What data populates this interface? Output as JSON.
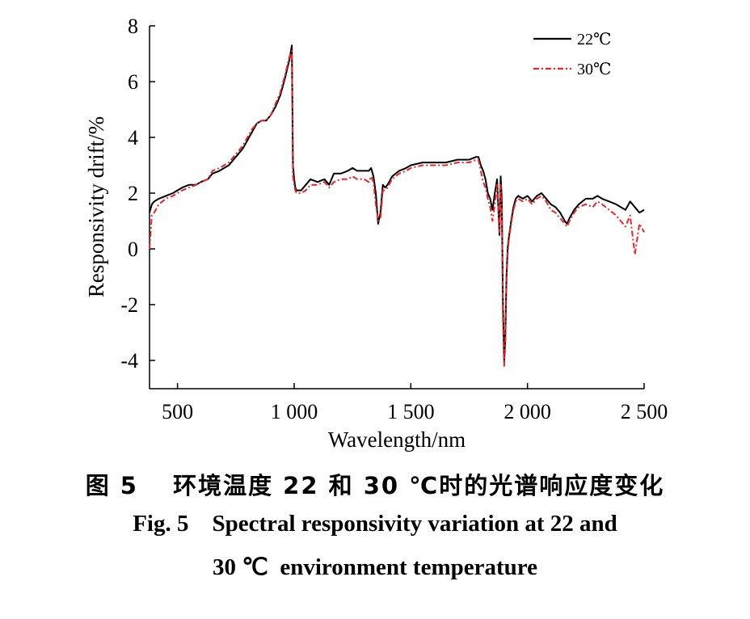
{
  "caption": {
    "cn": "图 5　 环境温度 22 和 30 ℃时的光谱响应度变化",
    "en_line1": "Fig. 5    Spectral responsivity variation at 22 and",
    "en_line2": "30 ℃  environment temperature"
  },
  "chart_data": {
    "type": "line",
    "title": "",
    "xlabel": "Wavelength/nm",
    "ylabel": "Responsivity drift/%",
    "xlim": [
      380,
      2500
    ],
    "ylim": [
      -5,
      8
    ],
    "xticks": [
      500,
      1000,
      1500,
      2000,
      2500
    ],
    "xtick_labels": [
      "500",
      "1 000",
      "1 500",
      "2 000",
      "2 500"
    ],
    "yticks": [
      8,
      6,
      4,
      2,
      0,
      -2,
      -4
    ],
    "ytick_labels": [
      "8",
      "6",
      "4",
      "2",
      "0",
      "-2",
      "-4"
    ],
    "grid": false,
    "legend_position": "top-right",
    "series": [
      {
        "name": "22℃",
        "color": "#000000",
        "dash": "solid",
        "x": [
          380,
          390,
          400,
          420,
          450,
          480,
          500,
          520,
          550,
          580,
          600,
          630,
          650,
          680,
          700,
          720,
          750,
          780,
          800,
          820,
          840,
          860,
          880,
          900,
          920,
          940,
          960,
          980,
          990,
          995,
          1000,
          1005,
          1010,
          1030,
          1050,
          1070,
          1100,
          1130,
          1150,
          1170,
          1200,
          1230,
          1250,
          1270,
          1300,
          1320,
          1330,
          1340,
          1350,
          1360,
          1370,
          1380,
          1390,
          1400,
          1420,
          1450,
          1480,
          1500,
          1550,
          1600,
          1650,
          1700,
          1750,
          1780,
          1790,
          1800,
          1810,
          1820,
          1830,
          1840,
          1850,
          1860,
          1870,
          1880,
          1885,
          1890,
          1895,
          1900,
          1905,
          1910,
          1915,
          1920,
          1930,
          1940,
          1950,
          1960,
          1980,
          2000,
          2020,
          2040,
          2060,
          2080,
          2100,
          2120,
          2140,
          2160,
          2170,
          2180,
          2200,
          2220,
          2250,
          2280,
          2300,
          2320,
          2350,
          2380,
          2400,
          2420,
          2440,
          2460,
          2480,
          2500
        ],
        "y": [
          1.3,
          1.6,
          1.7,
          1.8,
          1.9,
          2.0,
          2.1,
          2.2,
          2.3,
          2.3,
          2.4,
          2.5,
          2.7,
          2.8,
          2.9,
          3.0,
          3.3,
          3.6,
          3.9,
          4.2,
          4.5,
          4.6,
          4.6,
          4.8,
          5.1,
          5.5,
          6.1,
          6.8,
          7.3,
          3.0,
          2.5,
          2.2,
          2.1,
          2.1,
          2.3,
          2.5,
          2.4,
          2.5,
          2.3,
          2.7,
          2.7,
          2.8,
          2.9,
          2.8,
          2.8,
          2.8,
          2.9,
          2.6,
          2.0,
          0.9,
          1.3,
          2.3,
          2.2,
          2.3,
          2.6,
          2.8,
          2.9,
          3.0,
          3.1,
          3.1,
          3.1,
          3.2,
          3.2,
          3.3,
          3.3,
          3.0,
          2.8,
          2.5,
          2.0,
          1.8,
          1.4,
          2.0,
          2.5,
          0.5,
          2.6,
          1.8,
          -2.0,
          -4.0,
          -3.2,
          -1.0,
          0.0,
          0.4,
          1.0,
          1.5,
          1.8,
          1.9,
          1.8,
          1.9,
          1.7,
          1.9,
          2.0,
          1.8,
          1.6,
          1.5,
          1.3,
          1.0,
          0.9,
          1.1,
          1.4,
          1.6,
          1.8,
          1.8,
          1.9,
          1.8,
          1.7,
          1.6,
          1.5,
          1.4,
          1.7,
          1.5,
          1.3,
          1.4
        ]
      },
      {
        "name": "30℃",
        "color": "#e8262a",
        "dash": "dashdot",
        "x": [
          380,
          390,
          400,
          420,
          450,
          480,
          500,
          520,
          550,
          580,
          600,
          630,
          650,
          680,
          700,
          720,
          750,
          780,
          800,
          820,
          840,
          860,
          880,
          900,
          920,
          940,
          960,
          980,
          990,
          995,
          1000,
          1005,
          1010,
          1030,
          1050,
          1070,
          1100,
          1130,
          1150,
          1170,
          1200,
          1230,
          1250,
          1270,
          1300,
          1320,
          1330,
          1340,
          1350,
          1360,
          1370,
          1380,
          1390,
          1400,
          1420,
          1450,
          1480,
          1500,
          1550,
          1600,
          1650,
          1700,
          1750,
          1780,
          1790,
          1800,
          1810,
          1820,
          1830,
          1840,
          1850,
          1860,
          1870,
          1880,
          1885,
          1890,
          1895,
          1900,
          1905,
          1910,
          1915,
          1920,
          1930,
          1940,
          1950,
          1960,
          1980,
          2000,
          2020,
          2040,
          2060,
          2080,
          2100,
          2120,
          2140,
          2160,
          2170,
          2180,
          2200,
          2220,
          2250,
          2280,
          2300,
          2320,
          2350,
          2380,
          2400,
          2420,
          2440,
          2460,
          2480,
          2500
        ],
        "y": [
          0.0,
          1.2,
          1.3,
          1.6,
          1.8,
          1.9,
          2.0,
          2.1,
          2.2,
          2.3,
          2.4,
          2.5,
          2.8,
          2.9,
          3.0,
          3.1,
          3.4,
          3.7,
          4.0,
          4.3,
          4.5,
          4.6,
          4.6,
          4.8,
          5.2,
          5.6,
          6.2,
          6.9,
          7.1,
          2.6,
          2.3,
          2.1,
          2.0,
          2.0,
          2.1,
          2.3,
          2.3,
          2.4,
          2.2,
          2.4,
          2.5,
          2.5,
          2.6,
          2.5,
          2.5,
          2.4,
          2.6,
          2.4,
          1.6,
          1.0,
          1.1,
          2.1,
          2.1,
          2.2,
          2.5,
          2.7,
          2.8,
          2.9,
          3.0,
          3.0,
          3.0,
          3.1,
          3.1,
          3.2,
          3.2,
          2.8,
          2.4,
          2.2,
          1.8,
          1.5,
          1.0,
          1.6,
          2.3,
          0.6,
          2.3,
          1.6,
          -2.5,
          -4.2,
          -3.5,
          -1.2,
          -0.2,
          0.3,
          0.9,
          1.4,
          1.7,
          1.8,
          1.7,
          1.8,
          1.6,
          1.8,
          1.9,
          1.7,
          1.4,
          1.3,
          1.1,
          0.9,
          0.8,
          1.0,
          1.3,
          1.5,
          1.6,
          1.5,
          1.7,
          1.6,
          1.4,
          1.2,
          1.0,
          0.8,
          1.2,
          -0.2,
          0.9,
          0.6
        ]
      }
    ]
  }
}
